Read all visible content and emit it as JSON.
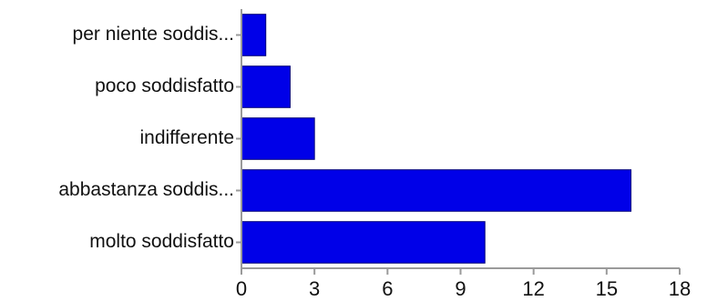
{
  "chart_data": {
    "type": "bar",
    "orientation": "horizontal",
    "categories": [
      "per niente soddis...",
      "poco soddisfatto",
      "indifferente",
      "abbastanza soddis...",
      "molto soddisfatto"
    ],
    "values": [
      1,
      2,
      3,
      16,
      10
    ],
    "xlim": [
      0,
      18
    ],
    "xticks": [
      "0",
      "3",
      "6",
      "9",
      "12",
      "15",
      "18"
    ],
    "title": "",
    "xlabel": "",
    "ylabel": "",
    "grid": false,
    "colors": {
      "bar": "#0000e8",
      "bar_edge": "#00007a",
      "axis": "#9a9a9a"
    }
  }
}
